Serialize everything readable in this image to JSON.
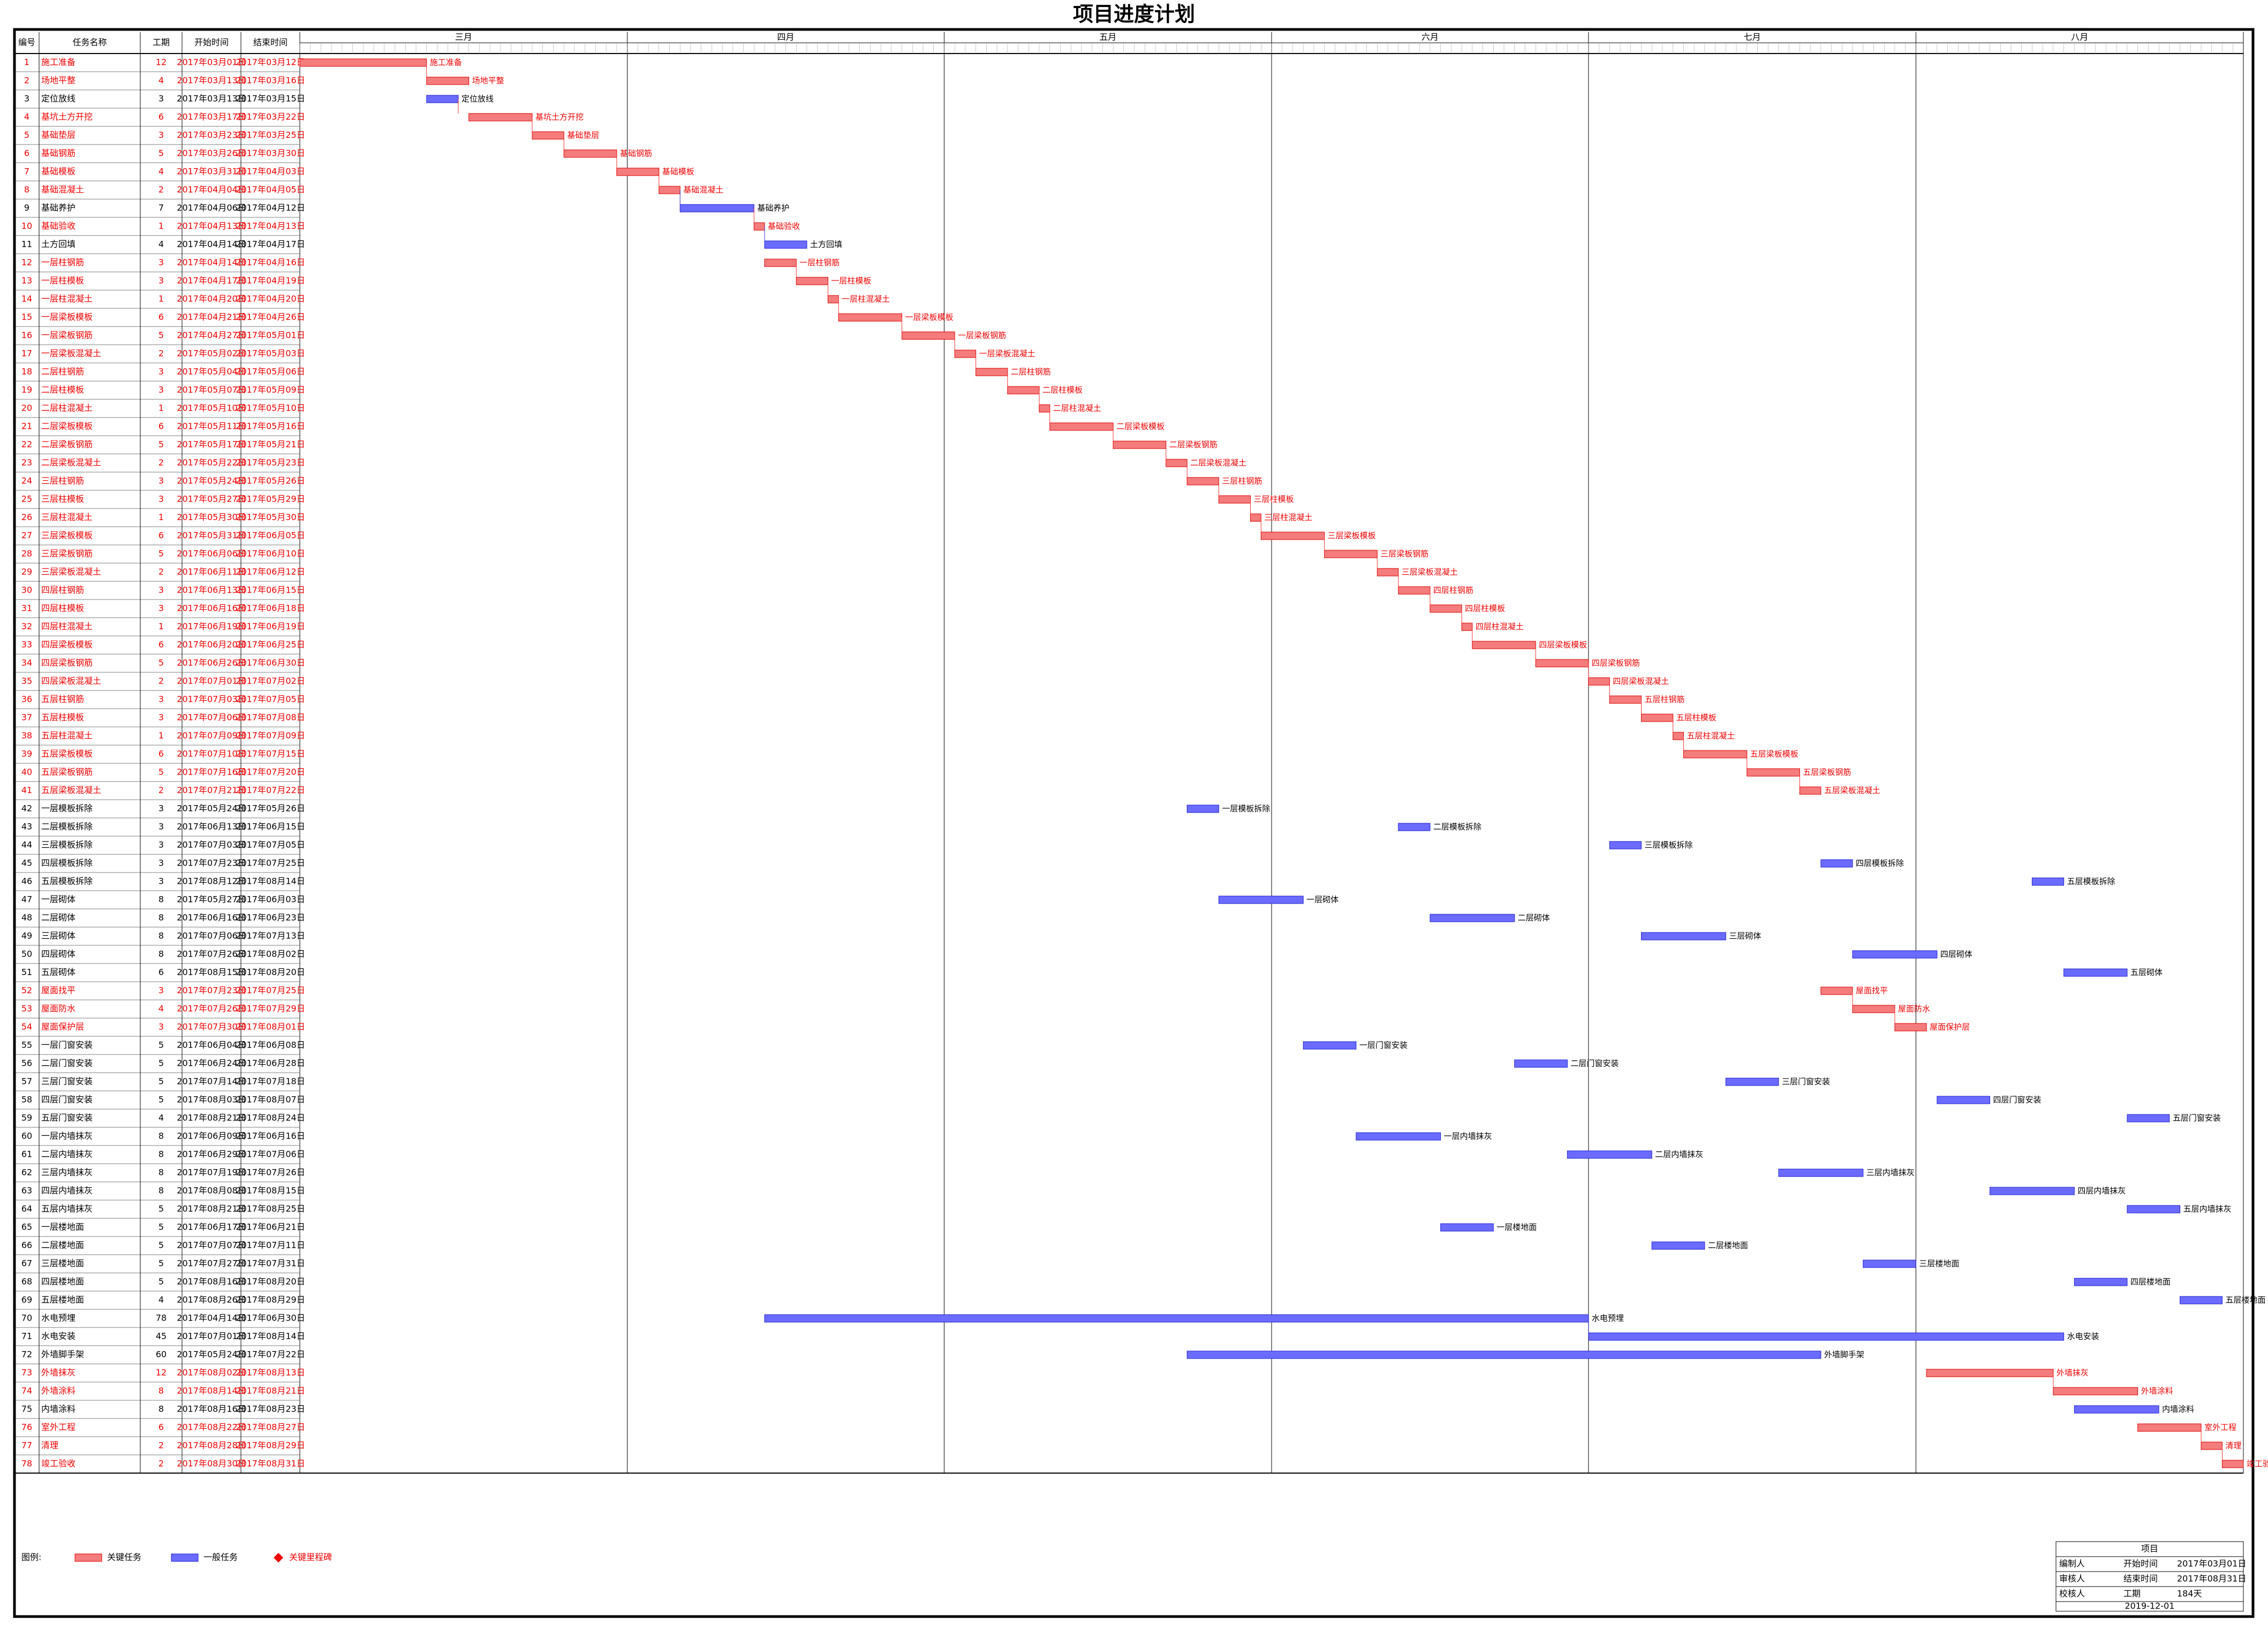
{
  "title": "项目进度计划",
  "columns": [
    "编号",
    "任务名称",
    "工期",
    "开始时间",
    "结束时间"
  ],
  "months": [
    {
      "name": "三月",
      "days": 31
    },
    {
      "name": "四月",
      "days": 30
    },
    {
      "name": "五月",
      "days": 31
    },
    {
      "name": "六月",
      "days": 30
    },
    {
      "name": "七月",
      "days": 31
    },
    {
      "name": "八月",
      "days": 31
    }
  ],
  "tasks": [
    [
      1,
      "施工准备",
      12,
      "2017年03月01日",
      "2017年03月12日",
      true
    ],
    [
      2,
      "场地平整",
      4,
      "2017年03月13日",
      "2017年03月16日",
      true
    ],
    [
      3,
      "定位放线",
      3,
      "2017年03月13日",
      "2017年03月15日",
      false
    ],
    [
      4,
      "基坑土方开挖",
      6,
      "2017年03月17日",
      "2017年03月22日",
      true
    ],
    [
      5,
      "基础垫层",
      3,
      "2017年03月23日",
      "2017年03月25日",
      true
    ],
    [
      6,
      "基础钢筋",
      5,
      "2017年03月26日",
      "2017年03月30日",
      true
    ],
    [
      7,
      "基础模板",
      4,
      "2017年03月31日",
      "2017年04月03日",
      true
    ],
    [
      8,
      "基础混凝土",
      2,
      "2017年04月04日",
      "2017年04月05日",
      true
    ],
    [
      9,
      "基础养护",
      7,
      "2017年04月06日",
      "2017年04月12日",
      false
    ],
    [
      10,
      "基础验收",
      1,
      "2017年04月13日",
      "2017年04月13日",
      true
    ],
    [
      11,
      "土方回填",
      4,
      "2017年04月14日",
      "2017年04月17日",
      false
    ],
    [
      12,
      "一层柱钢筋",
      3,
      "2017年04月14日",
      "2017年04月16日",
      true
    ],
    [
      13,
      "一层柱模板",
      3,
      "2017年04月17日",
      "2017年04月19日",
      true
    ],
    [
      14,
      "一层柱混凝土",
      1,
      "2017年04月20日",
      "2017年04月20日",
      true
    ],
    [
      15,
      "一层梁板模板",
      6,
      "2017年04月21日",
      "2017年04月26日",
      true
    ],
    [
      16,
      "一层梁板钢筋",
      5,
      "2017年04月27日",
      "2017年05月01日",
      true
    ],
    [
      17,
      "一层梁板混凝土",
      2,
      "2017年05月02日",
      "2017年05月03日",
      true
    ],
    [
      18,
      "二层柱钢筋",
      3,
      "2017年05月04日",
      "2017年05月06日",
      true
    ],
    [
      19,
      "二层柱模板",
      3,
      "2017年05月07日",
      "2017年05月09日",
      true
    ],
    [
      20,
      "二层柱混凝土",
      1,
      "2017年05月10日",
      "2017年05月10日",
      true
    ],
    [
      21,
      "二层梁板模板",
      6,
      "2017年05月11日",
      "2017年05月16日",
      true
    ],
    [
      22,
      "二层梁板钢筋",
      5,
      "2017年05月17日",
      "2017年05月21日",
      true
    ],
    [
      23,
      "二层梁板混凝土",
      2,
      "2017年05月22日",
      "2017年05月23日",
      true
    ],
    [
      24,
      "三层柱钢筋",
      3,
      "2017年05月24日",
      "2017年05月26日",
      true
    ],
    [
      25,
      "三层柱模板",
      3,
      "2017年05月27日",
      "2017年05月29日",
      true
    ],
    [
      26,
      "三层柱混凝土",
      1,
      "2017年05月30日",
      "2017年05月30日",
      true
    ],
    [
      27,
      "三层梁板模板",
      6,
      "2017年05月31日",
      "2017年06月05日",
      true
    ],
    [
      28,
      "三层梁板钢筋",
      5,
      "2017年06月06日",
      "2017年06月10日",
      true
    ],
    [
      29,
      "三层梁板混凝土",
      2,
      "2017年06月11日",
      "2017年06月12日",
      true
    ],
    [
      30,
      "四层柱钢筋",
      3,
      "2017年06月13日",
      "2017年06月15日",
      true
    ],
    [
      31,
      "四层柱模板",
      3,
      "2017年06月16日",
      "2017年06月18日",
      true
    ],
    [
      32,
      "四层柱混凝土",
      1,
      "2017年06月19日",
      "2017年06月19日",
      true
    ],
    [
      33,
      "四层梁板模板",
      6,
      "2017年06月20日",
      "2017年06月25日",
      true
    ],
    [
      34,
      "四层梁板钢筋",
      5,
      "2017年06月26日",
      "2017年06月30日",
      true
    ],
    [
      35,
      "四层梁板混凝土",
      2,
      "2017年07月01日",
      "2017年07月02日",
      true
    ],
    [
      36,
      "五层柱钢筋",
      3,
      "2017年07月03日",
      "2017年07月05日",
      true
    ],
    [
      37,
      "五层柱模板",
      3,
      "2017年07月06日",
      "2017年07月08日",
      true
    ],
    [
      38,
      "五层柱混凝土",
      1,
      "2017年07月09日",
      "2017年07月09日",
      true
    ],
    [
      39,
      "五层梁板模板",
      6,
      "2017年07月10日",
      "2017年07月15日",
      true
    ],
    [
      40,
      "五层梁板钢筋",
      5,
      "2017年07月16日",
      "2017年07月20日",
      true
    ],
    [
      41,
      "五层梁板混凝土",
      2,
      "2017年07月21日",
      "2017年07月22日",
      true
    ],
    [
      42,
      "一层模板拆除",
      3,
      "2017年05月24日",
      "2017年05月26日",
      false
    ],
    [
      43,
      "二层模板拆除",
      3,
      "2017年06月13日",
      "2017年06月15日",
      false
    ],
    [
      44,
      "三层模板拆除",
      3,
      "2017年07月03日",
      "2017年07月05日",
      false
    ],
    [
      45,
      "四层模板拆除",
      3,
      "2017年07月23日",
      "2017年07月25日",
      false
    ],
    [
      46,
      "五层模板拆除",
      3,
      "2017年08月12日",
      "2017年08月14日",
      false
    ],
    [
      47,
      "一层砌体",
      8,
      "2017年05月27日",
      "2017年06月03日",
      false
    ],
    [
      48,
      "二层砌体",
      8,
      "2017年06月16日",
      "2017年06月23日",
      false
    ],
    [
      49,
      "三层砌体",
      8,
      "2017年07月06日",
      "2017年07月13日",
      false
    ],
    [
      50,
      "四层砌体",
      8,
      "2017年07月26日",
      "2017年08月02日",
      false
    ],
    [
      51,
      "五层砌体",
      6,
      "2017年08月15日",
      "2017年08月20日",
      false
    ],
    [
      52,
      "屋面找平",
      3,
      "2017年07月23日",
      "2017年07月25日",
      true
    ],
    [
      53,
      "屋面防水",
      4,
      "2017年07月26日",
      "2017年07月29日",
      true
    ],
    [
      54,
      "屋面保护层",
      3,
      "2017年07月30日",
      "2017年08月01日",
      true
    ],
    [
      55,
      "一层门窗安装",
      5,
      "2017年06月04日",
      "2017年06月08日",
      false
    ],
    [
      56,
      "二层门窗安装",
      5,
      "2017年06月24日",
      "2017年06月28日",
      false
    ],
    [
      57,
      "三层门窗安装",
      5,
      "2017年07月14日",
      "2017年07月18日",
      false
    ],
    [
      58,
      "四层门窗安装",
      5,
      "2017年08月03日",
      "2017年08月07日",
      false
    ],
    [
      59,
      "五层门窗安装",
      4,
      "2017年08月21日",
      "2017年08月24日",
      false
    ],
    [
      60,
      "一层内墙抹灰",
      8,
      "2017年06月09日",
      "2017年06月16日",
      false
    ],
    [
      61,
      "二层内墙抹灰",
      8,
      "2017年06月29日",
      "2017年07月06日",
      false
    ],
    [
      62,
      "三层内墙抹灰",
      8,
      "2017年07月19日",
      "2017年07月26日",
      false
    ],
    [
      63,
      "四层内墙抹灰",
      8,
      "2017年08月08日",
      "2017年08月15日",
      false
    ],
    [
      64,
      "五层内墙抹灰",
      5,
      "2017年08月21日",
      "2017年08月25日",
      false
    ],
    [
      65,
      "一层楼地面",
      5,
      "2017年06月17日",
      "2017年06月21日",
      false
    ],
    [
      66,
      "二层楼地面",
      5,
      "2017年07月07日",
      "2017年07月11日",
      false
    ],
    [
      67,
      "三层楼地面",
      5,
      "2017年07月27日",
      "2017年07月31日",
      false
    ],
    [
      68,
      "四层楼地面",
      5,
      "2017年08月16日",
      "2017年08月20日",
      false
    ],
    [
      69,
      "五层楼地面",
      4,
      "2017年08月26日",
      "2017年08月29日",
      false
    ],
    [
      70,
      "水电预埋",
      78,
      "2017年04月14日",
      "2017年06月30日",
      false
    ],
    [
      71,
      "水电安装",
      45,
      "2017年07月01日",
      "2017年08月14日",
      false
    ],
    [
      72,
      "外墙脚手架",
      60,
      "2017年05月24日",
      "2017年07月22日",
      false
    ],
    [
      73,
      "外墙抹灰",
      12,
      "2017年08月02日",
      "2017年08月13日",
      true
    ],
    [
      74,
      "外墙涂料",
      8,
      "2017年08月14日",
      "2017年08月21日",
      true
    ],
    [
      75,
      "内墙涂料",
      8,
      "2017年08月16日",
      "2017年08月23日",
      false
    ],
    [
      76,
      "室外工程",
      6,
      "2017年08月22日",
      "2017年08月27日",
      true
    ],
    [
      77,
      "清理",
      2,
      "2017年08月28日",
      "2017年08月29日",
      true
    ],
    [
      78,
      "竣工验收",
      2,
      "2017年08月30日",
      "2017年08月31日",
      true
    ]
  ],
  "legend": {
    "title": "图例:",
    "critical": "关键任务",
    "normal": "一般任务",
    "milestone": "关键里程碑"
  },
  "footer": {
    "project": "项目",
    "rows": [
      [
        "编制人",
        "开始时间",
        "2017年03月01日"
      ],
      [
        "审核人",
        "结束时间",
        "2017年08月31日"
      ],
      [
        "校核人",
        "工期",
        "184天"
      ]
    ],
    "date": "2019-12-01"
  }
}
